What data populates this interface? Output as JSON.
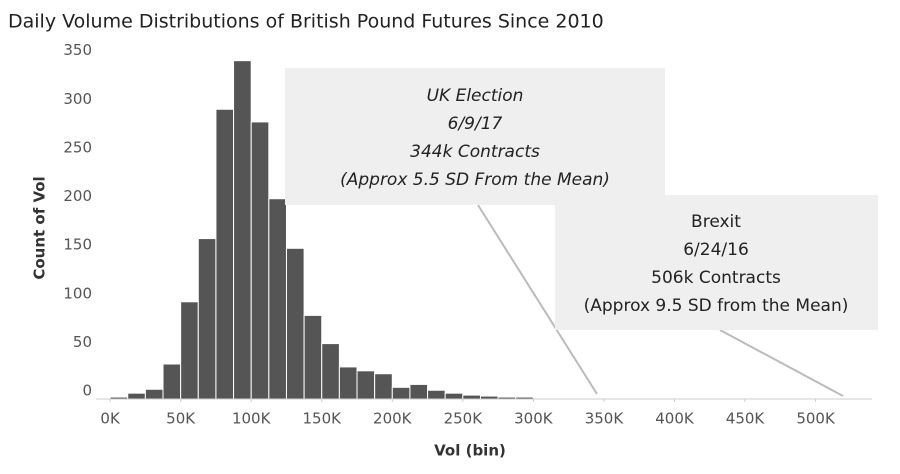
{
  "chart_data": {
    "type": "histogram",
    "title": "Daily Volume Distributions of British Pound Futures Since 2010",
    "x_label": "Vol (bin)",
    "y_label": "Count of Vol",
    "color": "#555555",
    "bins": [
      0,
      12500,
      25000,
      37500,
      50000,
      62500,
      75000,
      87500,
      100000,
      112500,
      125000,
      137500,
      150000,
      162500,
      175000,
      187500,
      200000,
      212500,
      225000,
      237500,
      250000,
      262500,
      275000,
      287500,
      300000,
      312500,
      325000,
      337500,
      350000,
      362500,
      375000,
      387500,
      400000,
      412500,
      425000,
      437500,
      450000,
      462500,
      475000,
      487500,
      500000,
      512500
    ],
    "counts": [
      2,
      6,
      10,
      36,
      100,
      165,
      298,
      348,
      285,
      206,
      155,
      86,
      57,
      33,
      29,
      26,
      12,
      15,
      9,
      6,
      4,
      3,
      2,
      2,
      1,
      1,
      0,
      1,
      0,
      0,
      0,
      0,
      0,
      0,
      0,
      0,
      0,
      0,
      0,
      0,
      1
    ],
    "xlim": [
      -10000,
      540000
    ],
    "xticks": [
      {
        "value": 0,
        "label": "0K"
      },
      {
        "value": 50000,
        "label": "50K"
      },
      {
        "value": 100000,
        "label": "100K"
      },
      {
        "value": 150000,
        "label": "150K"
      },
      {
        "value": 200000,
        "label": "200K"
      },
      {
        "value": 250000,
        "label": "250K"
      },
      {
        "value": 300000,
        "label": "300K"
      },
      {
        "value": 350000,
        "label": "350K"
      },
      {
        "value": 400000,
        "label": "400K"
      },
      {
        "value": 450000,
        "label": "450K"
      },
      {
        "value": 500000,
        "label": "500K"
      }
    ],
    "ylim": [
      0,
      360
    ],
    "yticks": [
      0,
      50,
      100,
      150,
      200,
      250,
      300,
      350
    ],
    "annotations": [
      {
        "lines": [
          "UK Election",
          "6/9/17",
          "344k Contracts",
          "(Approx 5.5 SD From the Mean)"
        ],
        "italic": true
      },
      {
        "lines": [
          "Brexit",
          "6/24/16",
          "506k Contracts",
          "(Approx 9.5 SD from the Mean)"
        ],
        "italic": false
      }
    ]
  }
}
